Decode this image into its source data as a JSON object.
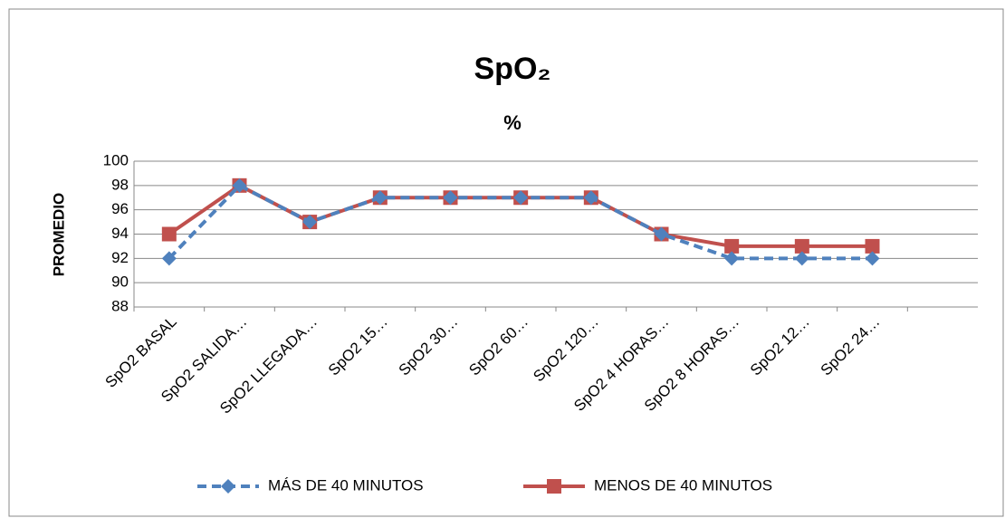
{
  "chart_data": {
    "type": "line",
    "title": "SpO₂",
    "subtitle": "%",
    "y_label": "PROMEDIO",
    "categories": [
      "SpO2 BASAL",
      "SpO2 SALIDA…",
      "SpO2 LLEGADA…",
      "SpO2 15…",
      "SpO2 30…",
      "SpO2 60…",
      "SpO2 120…",
      "SpO2 4 HORAS…",
      "SpO2 8 HORAS…",
      "SpO2 12…",
      "SpO2 24…",
      null
    ],
    "series": [
      {
        "name": "MÁS DE 40 MINUTOS",
        "color": "#4f81bd",
        "marker": "diamond",
        "dashed": true,
        "values": [
          92,
          98,
          95,
          97,
          97,
          97,
          97,
          94,
          92,
          92,
          92,
          null
        ]
      },
      {
        "name": "MENOS DE 40 MINUTOS",
        "color": "#c0504d",
        "marker": "square",
        "dashed": false,
        "values": [
          94,
          98,
          95,
          97,
          97,
          97,
          97,
          94,
          93,
          93,
          93,
          null
        ]
      }
    ],
    "ylim": [
      88,
      100
    ],
    "yticks": [
      88,
      90,
      92,
      94,
      96,
      98,
      100
    ],
    "grid": true,
    "legend": "bottom"
  }
}
